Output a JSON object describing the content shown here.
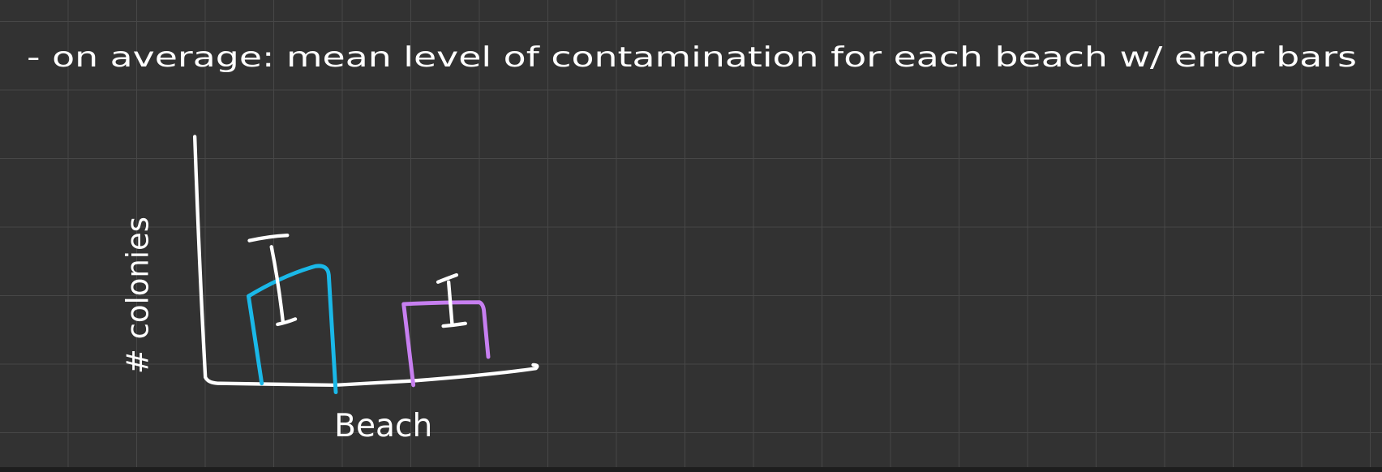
{
  "note": "- on average: mean level of contamination for each beach w/ error bars",
  "sketch": {
    "y_label": "# colonies",
    "x_label": "Beach"
  }
}
